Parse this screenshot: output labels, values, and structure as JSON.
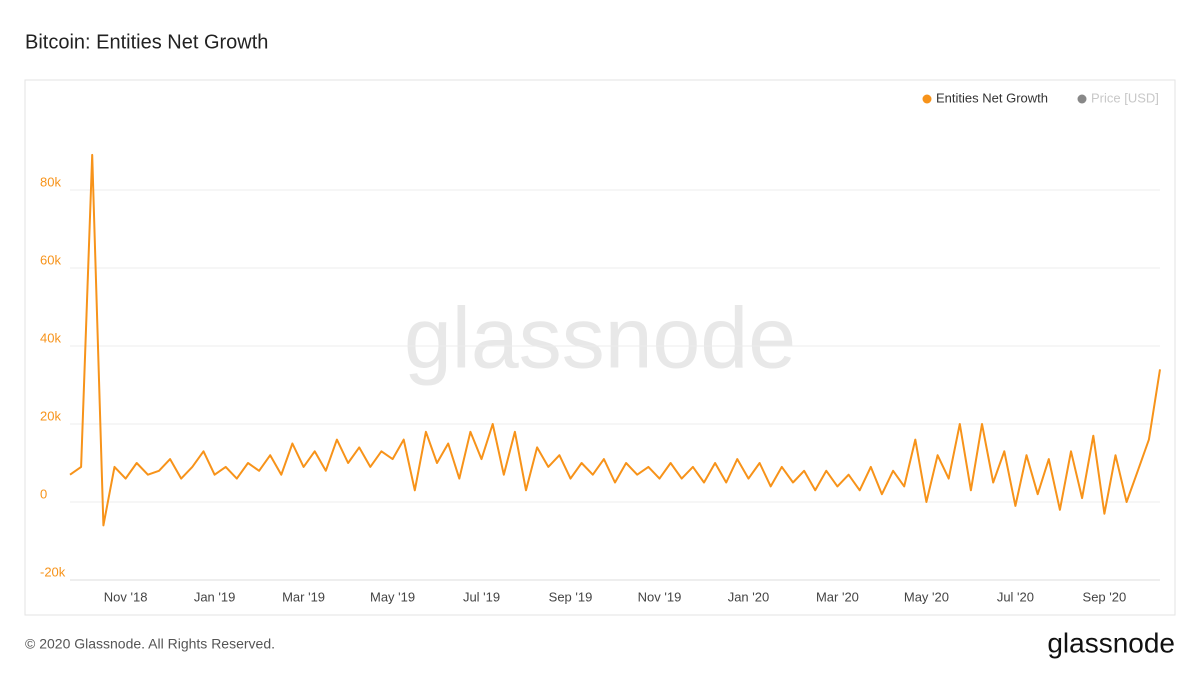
{
  "chart_data": {
    "type": "line",
    "title": "Bitcoin: Entities Net Growth",
    "watermark": "glassnode",
    "footer": "© 2020 Glassnode. All Rights Reserved.",
    "logo": "glassnode",
    "categories": [
      null,
      null,
      null,
      null,
      null,
      "Nov '18",
      null,
      null,
      null,
      null,
      null,
      null,
      null,
      "Jan '19",
      null,
      null,
      null,
      null,
      null,
      null,
      null,
      "Mar '19",
      null,
      null,
      null,
      null,
      null,
      null,
      null,
      "May '19",
      null,
      null,
      null,
      null,
      null,
      null,
      null,
      "Jul '19",
      null,
      null,
      null,
      null,
      null,
      null,
      null,
      "Sep '19",
      null,
      null,
      null,
      null,
      null,
      null,
      null,
      "Nov '19",
      null,
      null,
      null,
      null,
      null,
      null,
      null,
      "Jan '20",
      null,
      null,
      null,
      null,
      null,
      null,
      null,
      "Mar '20",
      null,
      null,
      null,
      null,
      null,
      null,
      null,
      "May '20",
      null,
      null,
      null,
      null,
      null,
      null,
      null,
      "Jul '20",
      null,
      null,
      null,
      null,
      null,
      null,
      null,
      "Sep '20",
      null,
      null,
      null,
      null,
      null
    ],
    "series": [
      {
        "name": "Entities Net Growth",
        "color": "#f7931a",
        "values": [
          7000,
          9000,
          89000,
          -6000,
          9000,
          6000,
          10000,
          7000,
          8000,
          11000,
          6000,
          9000,
          13000,
          7000,
          9000,
          6000,
          10000,
          8000,
          12000,
          7000,
          15000,
          9000,
          13000,
          8000,
          16000,
          10000,
          14000,
          9000,
          13000,
          11000,
          16000,
          3000,
          18000,
          10000,
          15000,
          6000,
          18000,
          11000,
          20000,
          7000,
          18000,
          3000,
          14000,
          9000,
          12000,
          6000,
          10000,
          7000,
          11000,
          5000,
          10000,
          7000,
          9000,
          6000,
          10000,
          6000,
          9000,
          5000,
          10000,
          5000,
          11000,
          6000,
          10000,
          4000,
          9000,
          5000,
          8000,
          3000,
          8000,
          4000,
          7000,
          3000,
          9000,
          2000,
          8000,
          4000,
          16000,
          0,
          12000,
          6000,
          20000,
          3000,
          20000,
          5000,
          13000,
          -1000,
          12000,
          2000,
          11000,
          -2000,
          13000,
          1000,
          17000,
          -3000,
          12000,
          0,
          8000,
          16000,
          34000
        ]
      }
    ],
    "inactive_legend": {
      "name": "Price [USD]",
      "color": "#888888"
    },
    "ylim": [
      -20000,
      100000
    ],
    "yticks": [
      {
        "value": -20000,
        "label": "-20k"
      },
      0,
      {
        "value": 20000,
        "label": "20k"
      },
      {
        "value": 40000,
        "label": "40k"
      },
      {
        "value": 60000,
        "label": "60k"
      },
      {
        "value": 80000,
        "label": "80k"
      }
    ],
    "grid": true
  }
}
